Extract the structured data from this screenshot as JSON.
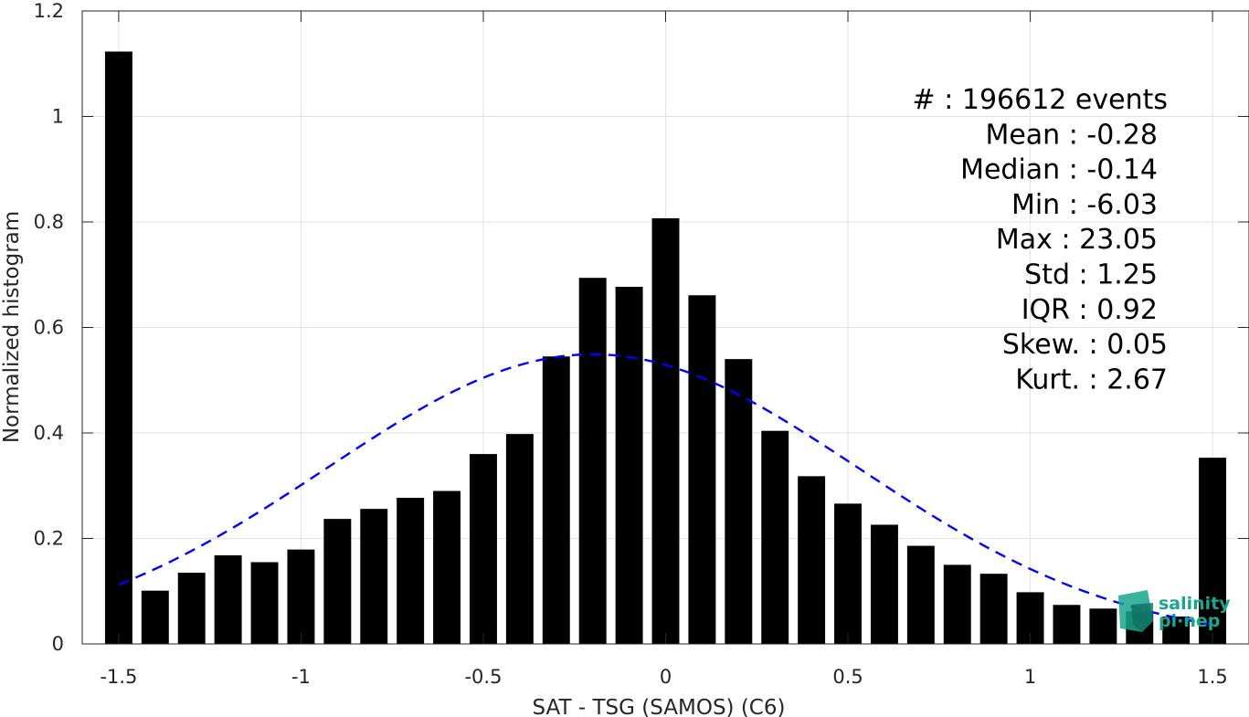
{
  "chart_data": {
    "type": "bar",
    "xlabel": "SAT - TSG (SAMOS) (C6)",
    "ylabel": "Normalized histogram",
    "xlim": [
      -1.6,
      1.6
    ],
    "ylim": [
      0,
      1.2
    ],
    "grid": true,
    "xticks": [
      -1.5,
      -1,
      -0.5,
      0,
      0.5,
      1,
      1.5
    ],
    "xtick_labels": [
      "-1.5",
      "-1",
      "-0.5",
      "0",
      "0.5",
      "1",
      "1.5"
    ],
    "yticks": [
      0,
      0.2,
      0.4,
      0.6,
      0.8,
      1,
      1.2
    ],
    "ytick_labels": [
      "0",
      "0.2",
      "0.4",
      "0.6",
      "0.8",
      "1",
      "1.2"
    ],
    "bar_color": "#000000",
    "fit_color": "#0000ff",
    "bars": {
      "x": [
        -1.5,
        -1.4,
        -1.3,
        -1.2,
        -1.1,
        -1.0,
        -0.9,
        -0.8,
        -0.7,
        -0.6,
        -0.5,
        -0.4,
        -0.3,
        -0.2,
        -0.1,
        0.0,
        0.1,
        0.2,
        0.3,
        0.4,
        0.5,
        0.6,
        0.7,
        0.8,
        0.9,
        1.0,
        1.1,
        1.2,
        1.3,
        1.4,
        1.5
      ],
      "values": [
        1.123,
        0.101,
        0.135,
        0.168,
        0.155,
        0.179,
        0.237,
        0.256,
        0.277,
        0.29,
        0.36,
        0.398,
        0.545,
        0.694,
        0.677,
        0.807,
        0.661,
        0.54,
        0.404,
        0.318,
        0.266,
        0.226,
        0.186,
        0.15,
        0.133,
        0.098,
        0.074,
        0.067,
        0.062,
        0.052,
        0.353
      ],
      "width": 0.075
    },
    "fit_curve": {
      "style": "dashed",
      "mean": -0.2,
      "sigma": 0.73,
      "peak": 0.549,
      "x_range": [
        -1.5,
        1.5
      ]
    },
    "annotations": [
      "#  : 196612 events",
      "Mean : -0.28",
      "Median : -0.14",
      "Min : -6.03",
      "Max : 23.05",
      "Std : 1.25",
      "IQR : 0.92",
      "Skew. : 0.05",
      "Kurt. : 2.67"
    ],
    "logo": {
      "line1": "salinity",
      "line2": "pi·nep",
      "color": "#1aa58f"
    }
  }
}
